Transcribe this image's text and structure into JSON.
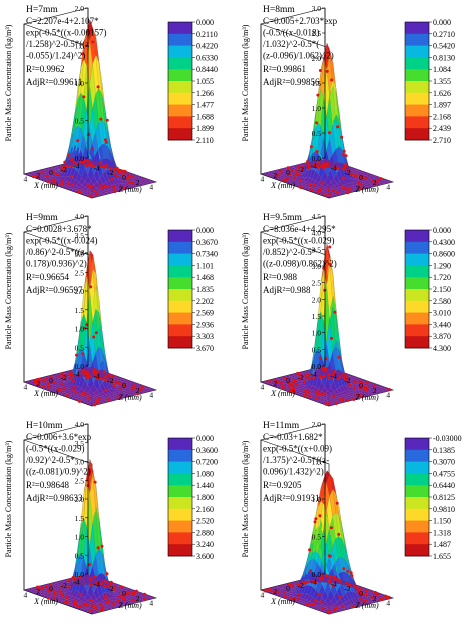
{
  "figure": {
    "z_axis_label": "Particle Mass Concentration (kg/m³)",
    "x_axis_label": "X (mm)",
    "y_axis_label": "Z (mm)",
    "colors": {
      "colormap": [
        "#7a1fa2",
        "#3a2fd0",
        "#1e88e5",
        "#00c8e0",
        "#00d27a",
        "#4ade2b",
        "#c8e620",
        "#ffe32a",
        "#ffa21e",
        "#ff4a1a",
        "#e01818",
        "#a80c10"
      ],
      "points": "#e01212",
      "mesh": "#555555"
    }
  },
  "chart_data": [
    {
      "type": "surface3d",
      "title": "H=7mm",
      "fit_lines": [
        "C=2.207e-4+2.107*",
        "exp(-0.5*((x-0.00157)",
        "/1.258)^2-0.5*((z",
        "-0.055)/1.24)^2)"
      ],
      "r2_label": "R²=0.9962",
      "adjr2_label": "AdjR²=0.99611",
      "params": {
        "c0": 0.0002207,
        "A": 2.107,
        "x0": 0.00157,
        "sx": 1.258,
        "z0": 0.055,
        "sz": 1.24
      },
      "zlim": [
        0,
        2.0
      ],
      "z_ticks": [
        "0.0",
        "0.5",
        "1.0",
        "1.5",
        "2.0"
      ],
      "x_ticks": [
        "4",
        "2",
        "0",
        "-2",
        "-4"
      ],
      "y_ticks": [
        "4",
        "2",
        "0",
        "-2",
        "-4"
      ],
      "colorbar_ticks": [
        "0.000",
        "0.2110",
        "0.4220",
        "0.6330",
        "0.8440",
        "1.055",
        "1.266",
        "1.477",
        "1.688",
        "1.899",
        "2.110"
      ]
    },
    {
      "type": "surface3d",
      "title": "H=8mm",
      "fit_lines": [
        "C=0.005+2.703*exp",
        "(-0.5/((x-0.018)",
        "/1.032)^2-0.5*(",
        "(z-0.096)/1.062)^2)"
      ],
      "r2_label": "R²=0.99861",
      "adjr2_label": "AdjR²=0.99856",
      "params": {
        "c0": 0.005,
        "A": 2.703,
        "x0": 0.018,
        "sx": 1.032,
        "z0": 0.096,
        "sz": 1.062
      },
      "zlim": [
        0,
        3.0
      ],
      "z_ticks": [
        "0.0",
        "0.5",
        "1.0",
        "1.5",
        "2.0",
        "2.5",
        "3.0"
      ],
      "x_ticks": [
        "4",
        "2",
        "0",
        "-2",
        "-4"
      ],
      "y_ticks": [
        "4",
        "2",
        "0",
        "-2",
        "-4"
      ],
      "colorbar_ticks": [
        "0.000",
        "0.2710",
        "0.5420",
        "0.8130",
        "1.084",
        "1.355",
        "1.626",
        "1.897",
        "2.168",
        "2.439",
        "2.710"
      ]
    },
    {
      "type": "surface3d",
      "title": "H=9mm",
      "fit_lines": [
        "C=0.0028+3.678*",
        "exp(-0.5*((x-0.024)",
        "/0.86)^2-0.5*((z-",
        "0.178)/0.936)^2)"
      ],
      "r2_label": "R²=0.96654",
      "adjr2_label": "AdjR²=0.96597",
      "params": {
        "c0": 0.0028,
        "A": 3.678,
        "x0": 0.024,
        "sx": 0.86,
        "z0": 0.178,
        "sz": 0.936
      },
      "zlim": [
        0,
        4.0
      ],
      "z_ticks": [
        "0.0",
        "0.5",
        "1.0",
        "1.5",
        "2.0",
        "2.5",
        "3.0",
        "3.5",
        "4.0"
      ],
      "x_ticks": [
        "4",
        "2",
        "0",
        "-2",
        "-4"
      ],
      "y_ticks": [
        "4",
        "2",
        "0",
        "-2",
        "-4"
      ],
      "colorbar_ticks": [
        "0.000",
        "0.3670",
        "0.7340",
        "1.101",
        "1.468",
        "1.835",
        "2.202",
        "2.569",
        "2.936",
        "3.303",
        "3.670"
      ]
    },
    {
      "type": "surface3d",
      "title": "H=9.5mm",
      "fit_lines": [
        "C=8.036e-4+4.295*",
        "exp(-0.5*((x-0.029)",
        "/0.852)^2-0.5*",
        "((z-0.098)/0.862)^2)"
      ],
      "r2_label": "R²=0.988",
      "adjr2_label": "AdjR²=0.988",
      "params": {
        "c0": 0.0008036,
        "A": 4.295,
        "x0": 0.029,
        "sx": 0.852,
        "z0": 0.098,
        "sz": 0.862
      },
      "zlim": [
        0,
        4.5
      ],
      "z_ticks": [
        "0.0",
        "0.5",
        "1.0",
        "1.5",
        "2.0",
        "2.5",
        "3.0",
        "3.5",
        "4.0",
        "4.5"
      ],
      "x_ticks": [
        "4",
        "2",
        "0",
        "-2",
        "-4"
      ],
      "y_ticks": [
        "4",
        "2",
        "0",
        "-2",
        "-4"
      ],
      "colorbar_ticks": [
        "0.000",
        "0.4300",
        "0.8600",
        "1.290",
        "1.720",
        "2.150",
        "2.580",
        "3.010",
        "3.440",
        "3.870",
        "4.300"
      ]
    },
    {
      "type": "surface3d",
      "title": "H=10mm",
      "fit_lines": [
        "C=0.006+3.6*exp",
        "(-0.5*((x-0.029)",
        "/0.92)^2-0.5*",
        "((z-0.081)/0.9)^2)"
      ],
      "r2_label": "R²=0.98648",
      "adjr2_label": "AdjR²=0.98633",
      "params": {
        "c0": 0.006,
        "A": 3.6,
        "x0": 0.029,
        "sx": 0.92,
        "z0": 0.081,
        "sz": 0.9
      },
      "zlim": [
        0,
        4.0
      ],
      "z_ticks": [
        "0.0",
        "0.5",
        "1.0",
        "1.5",
        "2.0",
        "2.5",
        "3.0",
        "3.5",
        "4.0"
      ],
      "x_ticks": [
        "4",
        "2",
        "0",
        "-2",
        "-4"
      ],
      "y_ticks": [
        "4",
        "2",
        "0",
        "-2",
        "-4"
      ],
      "colorbar_ticks": [
        "0.000",
        "0.3600",
        "0.7200",
        "1.080",
        "1.440",
        "1.800",
        "2.160",
        "2.520",
        "2.880",
        "3.240",
        "3.600"
      ]
    },
    {
      "type": "surface3d",
      "title": "H=11mm",
      "fit_lines": [
        "C=-0.03+1.682*",
        "exp(-0.5*((x+0.09)",
        "/1.375)^2-0.5*((z-",
        "0.096)/1.432)^2)"
      ],
      "r2_label": "R²=0.9205",
      "adjr2_label": "AdjR²=0.91931",
      "params": {
        "c0": -0.03,
        "A": 1.682,
        "x0": -0.09,
        "sx": 1.375,
        "z0": 0.096,
        "sz": 1.432
      },
      "zlim": [
        0,
        2.0
      ],
      "z_ticks": [
        "0.0",
        "0.5",
        "1.0",
        "1.5",
        "2.0"
      ],
      "x_ticks": [
        "4",
        "2",
        "0",
        "-2",
        "-4"
      ],
      "y_ticks": [
        "4",
        "2",
        "0",
        "-2",
        "-4"
      ],
      "colorbar_ticks": [
        "-0.03000",
        "0.1385",
        "0.3070",
        "0.4755",
        "0.6440",
        "0.8125",
        "0.9810",
        "1.150",
        "1.318",
        "1.487",
        "1.655"
      ]
    }
  ]
}
